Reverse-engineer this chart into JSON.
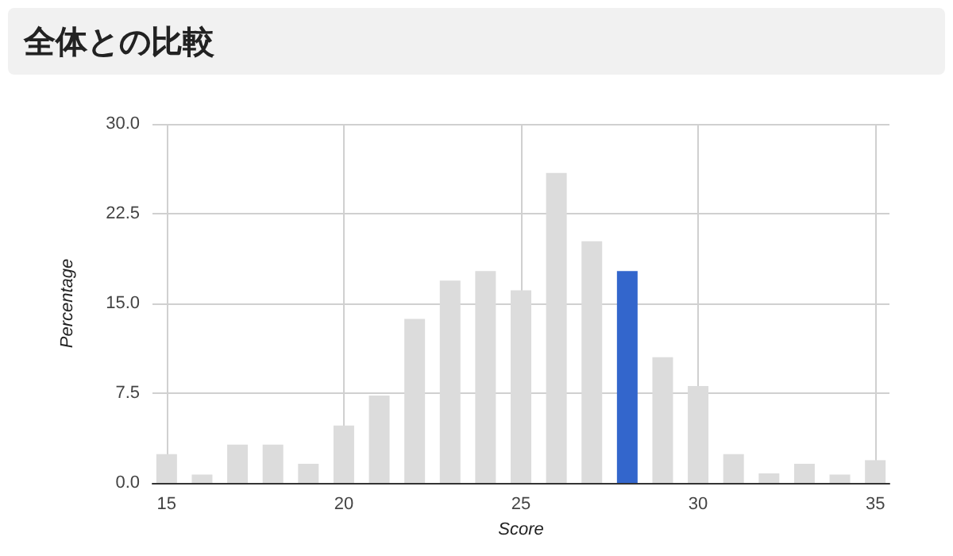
{
  "chart_data": {
    "type": "bar",
    "title": "全体との比較",
    "xlabel": "Score",
    "ylabel": "Percentage",
    "x": [
      15,
      16,
      17,
      18,
      19,
      20,
      21,
      22,
      23,
      24,
      25,
      26,
      27,
      28,
      29,
      30,
      31,
      32,
      33,
      34,
      35
    ],
    "values": [
      2.4,
      0.7,
      3.2,
      3.2,
      1.6,
      4.8,
      7.3,
      13.7,
      16.9,
      17.7,
      16.1,
      25.9,
      20.2,
      17.7,
      10.5,
      8.1,
      2.4,
      0.8,
      1.6,
      0.7,
      1.9
    ],
    "colors": [
      "#dcdcdc",
      "#dcdcdc",
      "#dcdcdc",
      "#dcdcdc",
      "#dcdcdc",
      "#dcdcdc",
      "#dcdcdc",
      "#dcdcdc",
      "#dcdcdc",
      "#dcdcdc",
      "#dcdcdc",
      "#dcdcdc",
      "#dcdcdc",
      "#3366cc",
      "#dcdcdc",
      "#dcdcdc",
      "#dcdcdc",
      "#dcdcdc",
      "#dcdcdc",
      "#dcdcdc",
      "#dcdcdc"
    ],
    "xlim": [
      14.6,
      35.4
    ],
    "xticks": [
      15,
      20,
      25,
      30,
      35
    ],
    "ylim": [
      0,
      30
    ],
    "yticks": [
      {
        "value": 0,
        "label": "0.0"
      },
      {
        "value": 7.5,
        "label": "7.5"
      },
      {
        "value": 15,
        "label": "15.0"
      },
      {
        "value": 22.5,
        "label": "22.5"
      },
      {
        "value": 30,
        "label": "30.0"
      }
    ],
    "grid": true
  }
}
